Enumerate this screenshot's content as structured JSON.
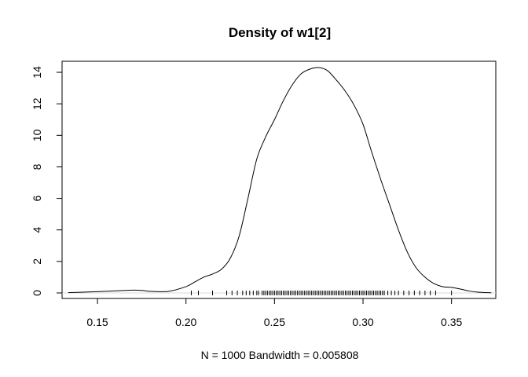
{
  "chart_data": {
    "type": "line",
    "title": "Density of w1[2]",
    "xlabel": "N = 1000   Bandwidth = 0.005808",
    "ylabel": "",
    "xlim": [
      0.13,
      0.375
    ],
    "ylim": [
      -0.35,
      14.7
    ],
    "x_ticks": [
      "0.15",
      "0.20",
      "0.25",
      "0.30",
      "0.35"
    ],
    "x_tick_values": [
      0.15,
      0.2,
      0.25,
      0.3,
      0.35
    ],
    "y_ticks": [
      "0",
      "2",
      "4",
      "6",
      "8",
      "10",
      "12",
      "14"
    ],
    "y_tick_values": [
      0,
      2,
      4,
      6,
      8,
      10,
      12,
      14
    ],
    "box": true,
    "grid": false,
    "zero_reference_line": true,
    "series": [
      {
        "x": [
          0.1335,
          0.14,
          0.15,
          0.16,
          0.17,
          0.175,
          0.18,
          0.19,
          0.2,
          0.205,
          0.21,
          0.215,
          0.22,
          0.225,
          0.23,
          0.235,
          0.24,
          0.245,
          0.25,
          0.255,
          0.26,
          0.265,
          0.27,
          0.275,
          0.28,
          0.285,
          0.29,
          0.295,
          0.3,
          0.305,
          0.31,
          0.315,
          0.32,
          0.325,
          0.33,
          0.335,
          0.34,
          0.345,
          0.35,
          0.355,
          0.36,
          0.365,
          0.3725
        ],
        "y": [
          0.02,
          0.04,
          0.08,
          0.13,
          0.18,
          0.16,
          0.1,
          0.1,
          0.4,
          0.7,
          1.0,
          1.2,
          1.5,
          2.2,
          3.6,
          6.0,
          8.5,
          9.9,
          11.0,
          12.2,
          13.2,
          13.9,
          14.2,
          14.3,
          14.1,
          13.5,
          12.8,
          11.9,
          10.7,
          8.9,
          7.2,
          5.6,
          4.0,
          2.6,
          1.6,
          1.0,
          0.6,
          0.4,
          0.35,
          0.25,
          0.12,
          0.05,
          0.01
        ]
      }
    ],
    "rug": [
      0.203,
      0.207,
      0.215,
      0.223,
      0.226,
      0.229,
      0.232,
      0.234,
      0.236,
      0.238,
      0.24,
      0.241,
      0.243,
      0.244,
      0.245,
      0.246,
      0.247,
      0.248,
      0.249,
      0.25,
      0.251,
      0.252,
      0.253,
      0.254,
      0.255,
      0.256,
      0.257,
      0.258,
      0.259,
      0.26,
      0.261,
      0.262,
      0.263,
      0.264,
      0.265,
      0.266,
      0.267,
      0.268,
      0.269,
      0.27,
      0.271,
      0.272,
      0.273,
      0.274,
      0.275,
      0.276,
      0.277,
      0.278,
      0.279,
      0.28,
      0.281,
      0.282,
      0.283,
      0.284,
      0.285,
      0.286,
      0.287,
      0.288,
      0.289,
      0.29,
      0.291,
      0.292,
      0.293,
      0.294,
      0.295,
      0.296,
      0.297,
      0.298,
      0.299,
      0.3,
      0.301,
      0.302,
      0.303,
      0.304,
      0.305,
      0.306,
      0.307,
      0.308,
      0.309,
      0.31,
      0.311,
      0.312,
      0.314,
      0.316,
      0.318,
      0.32,
      0.323,
      0.326,
      0.329,
      0.332,
      0.335,
      0.338,
      0.341,
      0.35
    ]
  }
}
